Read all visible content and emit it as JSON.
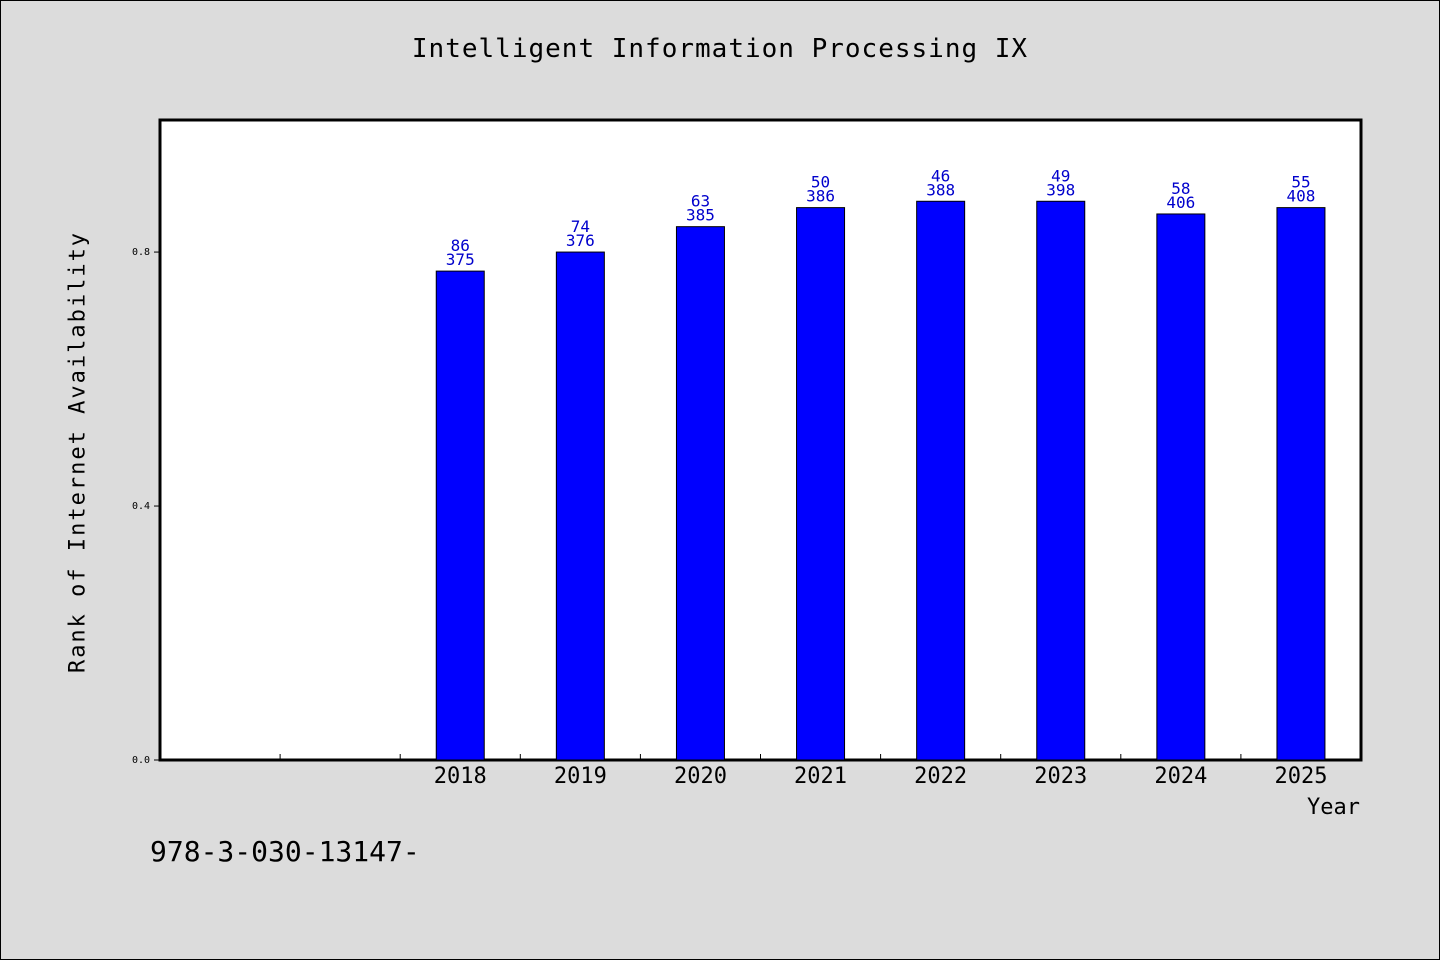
{
  "chart_data": {
    "type": "bar",
    "title": "Intelligent Information Processing IX",
    "xlabel": "Year",
    "ylabel": "Rank of Internet Availability",
    "footer": "978-3-030-13147-",
    "categories": [
      "",
      "",
      "2018",
      "2019",
      "2020",
      "2021",
      "2022",
      "2023",
      "2024",
      "2025"
    ],
    "values": [
      null,
      null,
      0.77,
      0.8,
      0.84,
      0.87,
      0.88,
      0.88,
      0.86,
      0.87
    ],
    "labels_top": [
      "",
      "",
      "86",
      "74",
      "63",
      "50",
      "46",
      "49",
      "58",
      "55"
    ],
    "labels_bottom": [
      "",
      "",
      "375",
      "376",
      "385",
      "386",
      "388",
      "398",
      "406",
      "408"
    ],
    "yticks": [
      "0.0",
      "0.4",
      "0.8"
    ],
    "ylim": [
      0,
      1.008
    ],
    "grid": false,
    "colors": {
      "bar": "#0000ff",
      "value_label": "#0000cc",
      "plot_bg": "#ffffff",
      "page_bg": "#dcdcdc"
    }
  }
}
